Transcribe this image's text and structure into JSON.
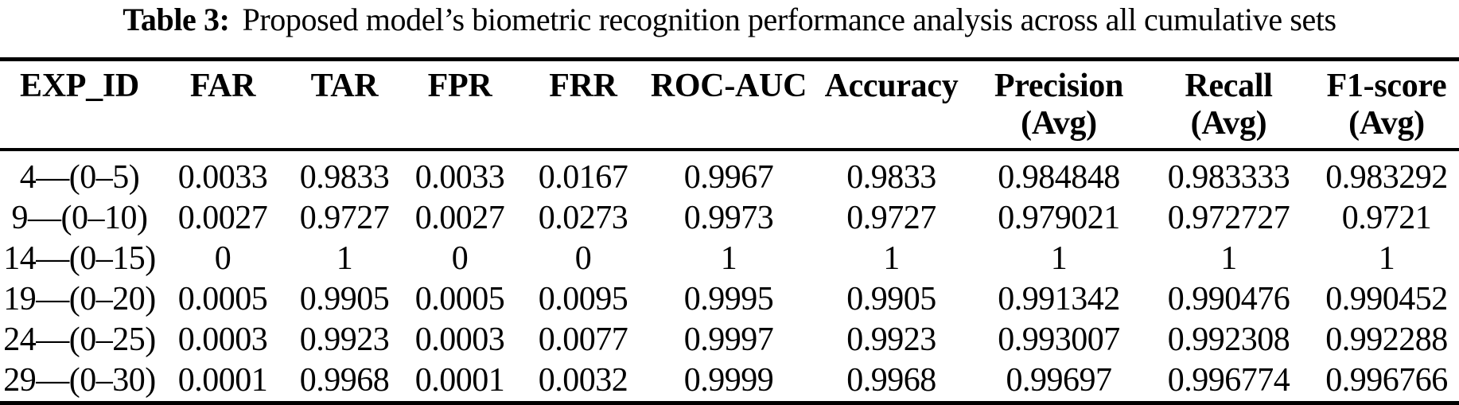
{
  "caption": {
    "label": "Table 3:",
    "text": "Proposed model’s biometric recognition performance analysis across all cumulative sets"
  },
  "table": {
    "columns": [
      {
        "label": "EXP_ID",
        "sub": ""
      },
      {
        "label": "FAR",
        "sub": ""
      },
      {
        "label": "TAR",
        "sub": ""
      },
      {
        "label": "FPR",
        "sub": ""
      },
      {
        "label": "FRR",
        "sub": ""
      },
      {
        "label": "ROC-AUC",
        "sub": ""
      },
      {
        "label": "Accuracy",
        "sub": ""
      },
      {
        "label": "Precision",
        "sub": "(Avg)"
      },
      {
        "label": "Recall",
        "sub": "(Avg)"
      },
      {
        "label": "F1-score",
        "sub": "(Avg)"
      }
    ],
    "rows": [
      [
        "4—(0–5)",
        "0.0033",
        "0.9833",
        "0.0033",
        "0.0167",
        "0.9967",
        "0.9833",
        "0.984848",
        "0.983333",
        "0.983292"
      ],
      [
        "9—(0–10)",
        "0.0027",
        "0.9727",
        "0.0027",
        "0.0273",
        "0.9973",
        "0.9727",
        "0.979021",
        "0.972727",
        "0.9721"
      ],
      [
        "14—(0–15)",
        "0",
        "1",
        "0",
        "0",
        "1",
        "1",
        "1",
        "1",
        "1"
      ],
      [
        "19—(0–20)",
        "0.0005",
        "0.9905",
        "0.0005",
        "0.0095",
        "0.9995",
        "0.9905",
        "0.991342",
        "0.990476",
        "0.990452"
      ],
      [
        "24—(0–25)",
        "0.0003",
        "0.9923",
        "0.0003",
        "0.0077",
        "0.9997",
        "0.9923",
        "0.993007",
        "0.992308",
        "0.992288"
      ],
      [
        "29—(0–30)",
        "0.0001",
        "0.9968",
        "0.0001",
        "0.0032",
        "0.9999",
        "0.9968",
        "0.99697",
        "0.996774",
        "0.996766"
      ]
    ]
  },
  "colors": {
    "text": "#000000",
    "background": "#ffffff",
    "rule": "#000000"
  }
}
